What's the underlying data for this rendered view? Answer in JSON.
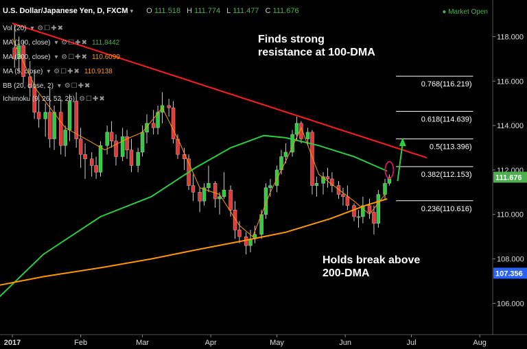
{
  "header": {
    "symbol": "U.S. Dollar/Japanese Yen, D, FXCM",
    "open_label": "O",
    "open": "111.518",
    "high_label": "H",
    "high": "111.774",
    "low_label": "L",
    "low": "111.477",
    "close_label": "C",
    "close": "111.676",
    "market_status": "Market Open"
  },
  "indicators": [
    {
      "label": "Vol (20)",
      "value": "",
      "color": "#dddddd"
    },
    {
      "label": "MA (100, close)",
      "value": "111.8442",
      "color": "#4caf50"
    },
    {
      "label": "MA (200, close)",
      "value": "110.6099",
      "color": "#ff9800"
    },
    {
      "label": "MA (5, close)",
      "value": "110.9138",
      "color": "#ff9800"
    },
    {
      "label": "BB (20, close, 2)",
      "value": "",
      "color": "#dddddd"
    },
    {
      "label": "Ichimoku (9, 26, 52, 26)",
      "value": "",
      "color": "#dddddd"
    }
  ],
  "annotations": {
    "resistance": [
      "Finds strong",
      "resistance at 100-DMA"
    ],
    "support": [
      "Holds break above",
      "200-DMA"
    ]
  },
  "chart_data": {
    "type": "line",
    "title": "U.S. Dollar/Japanese Yen, D, FXCM",
    "y_axis": {
      "range": [
        104.5,
        118.6
      ],
      "tick_labels": [
        "106.000",
        "108.000",
        "110.000",
        "112.000",
        "114.000",
        "116.000",
        "118.000"
      ],
      "position": "right"
    },
    "x_axis": {
      "range": [
        "2017-01-01",
        "2017-08-05"
      ],
      "tick_labels": [
        {
          "label": "2017",
          "date": "2017-01-01"
        },
        {
          "label": "Feb",
          "date": "2017-02-01"
        },
        {
          "label": "Mar",
          "date": "2017-03-01"
        },
        {
          "label": "Apr",
          "date": "2017-04-01"
        },
        {
          "label": "May",
          "date": "2017-05-01"
        },
        {
          "label": "Jun",
          "date": "2017-06-01"
        },
        {
          "label": "Jul",
          "date": "2017-07-01"
        },
        {
          "label": "Aug",
          "date": "2017-08-01"
        }
      ]
    },
    "price_badges": [
      {
        "value": 111.676,
        "label": "111.676",
        "color": "#4caf50"
      },
      {
        "value": 107.356,
        "label": "107.356",
        "color": "#2962ff"
      }
    ],
    "fibonacci": [
      {
        "level": 116.219,
        "label": "0.768(116.219)"
      },
      {
        "level": 114.639,
        "label": "0.618(114.639)"
      },
      {
        "level": 113.396,
        "label": "0.5(113.396)"
      },
      {
        "level": 112.153,
        "label": "0.382(112.153)"
      },
      {
        "level": 110.616,
        "label": "0.236(110.616)"
      }
    ],
    "trendline": {
      "color": "#ff1e1e",
      "points": [
        [
          "2017-01-01",
          118.6
        ],
        [
          "2017-07-08",
          112.55
        ]
      ]
    },
    "series": [
      {
        "key": "ma100",
        "color": "#2ecc40",
        "points": [
          [
            "2016-12-20",
            105.7
          ],
          [
            "2017-01-15",
            108.2
          ],
          [
            "2017-02-10",
            109.9
          ],
          [
            "2017-03-05",
            110.8
          ],
          [
            "2017-03-25",
            112.1
          ],
          [
            "2017-04-10",
            113.0
          ],
          [
            "2017-04-25",
            113.55
          ],
          [
            "2017-05-05",
            113.45
          ],
          [
            "2017-05-20",
            113.1
          ],
          [
            "2017-06-05",
            112.6
          ],
          [
            "2017-06-20",
            111.95
          ]
        ]
      },
      {
        "key": "ma200",
        "color": "#ff9800",
        "points": [
          [
            "2016-12-20",
            106.7
          ],
          [
            "2017-01-15",
            107.2
          ],
          [
            "2017-02-10",
            107.6
          ],
          [
            "2017-03-05",
            108.0
          ],
          [
            "2017-03-25",
            108.4
          ],
          [
            "2017-04-15",
            108.8
          ],
          [
            "2017-05-05",
            109.2
          ],
          [
            "2017-05-25",
            109.8
          ],
          [
            "2017-06-10",
            110.4
          ],
          [
            "2017-06-20",
            110.7
          ]
        ]
      },
      {
        "key": "ma5",
        "color": "#ff9800",
        "points": [
          [
            "2017-01-01",
            117.9
          ],
          [
            "2017-01-12",
            115.6
          ],
          [
            "2017-01-25",
            113.9
          ],
          [
            "2017-02-05",
            113.3
          ],
          [
            "2017-02-12",
            112.9
          ],
          [
            "2017-02-22",
            113.4
          ],
          [
            "2017-03-01",
            113.7
          ],
          [
            "2017-03-10",
            114.8
          ],
          [
            "2017-03-18",
            113.2
          ],
          [
            "2017-03-27",
            111.2
          ],
          [
            "2017-04-05",
            110.9
          ],
          [
            "2017-04-14",
            109.5
          ],
          [
            "2017-04-20",
            109.0
          ],
          [
            "2017-04-28",
            111.0
          ],
          [
            "2017-05-05",
            112.4
          ],
          [
            "2017-05-12",
            113.9
          ],
          [
            "2017-05-20",
            111.8
          ],
          [
            "2017-05-28",
            111.2
          ],
          [
            "2017-06-05",
            110.6
          ],
          [
            "2017-06-12",
            110.0
          ],
          [
            "2017-06-19",
            110.9
          ]
        ]
      }
    ],
    "candles": [
      [
        "2017-01-02",
        117.5,
        118.6,
        116.6,
        117.0
      ],
      [
        "2017-01-04",
        117.0,
        118.0,
        116.4,
        117.6
      ],
      [
        "2017-01-06",
        117.6,
        117.8,
        115.9,
        116.2
      ],
      [
        "2017-01-09",
        116.2,
        116.9,
        115.3,
        115.7
      ],
      [
        "2017-01-11",
        115.7,
        116.5,
        114.3,
        114.6
      ],
      [
        "2017-01-13",
        114.6,
        115.4,
        113.9,
        114.3
      ],
      [
        "2017-01-16",
        114.3,
        115.0,
        113.5,
        114.6
      ],
      [
        "2017-01-18",
        114.6,
        115.7,
        113.0,
        113.4
      ],
      [
        "2017-01-20",
        113.4,
        114.9,
        112.9,
        114.6
      ],
      [
        "2017-01-23",
        114.6,
        115.2,
        112.7,
        113.1
      ],
      [
        "2017-01-25",
        113.1,
        114.0,
        112.6,
        113.8
      ],
      [
        "2017-01-27",
        113.8,
        115.4,
        113.3,
        115.1
      ],
      [
        "2017-01-30",
        115.1,
        115.5,
        113.0,
        113.4
      ],
      [
        "2017-02-01",
        113.4,
        113.9,
        112.1,
        112.7
      ],
      [
        "2017-02-03",
        112.7,
        113.2,
        111.6,
        112.5
      ],
      [
        "2017-02-06",
        112.5,
        112.8,
        111.7,
        112.2
      ],
      [
        "2017-02-08",
        112.2,
        112.6,
        111.6,
        111.9
      ],
      [
        "2017-02-10",
        111.9,
        113.3,
        111.7,
        113.1
      ],
      [
        "2017-02-13",
        113.1,
        114.0,
        112.7,
        113.7
      ],
      [
        "2017-02-15",
        113.7,
        114.2,
        113.0,
        113.3
      ],
      [
        "2017-02-17",
        113.3,
        113.6,
        112.2,
        112.6
      ],
      [
        "2017-02-20",
        112.6,
        113.9,
        112.4,
        113.5
      ],
      [
        "2017-02-22",
        113.5,
        113.8,
        112.5,
        112.9
      ],
      [
        "2017-02-24",
        112.9,
        113.4,
        111.9,
        112.2
      ],
      [
        "2017-02-27",
        112.2,
        113.0,
        111.9,
        112.8
      ],
      [
        "2017-03-01",
        112.8,
        114.0,
        112.6,
        113.7
      ],
      [
        "2017-03-03",
        113.7,
        114.5,
        113.2,
        114.1
      ],
      [
        "2017-03-06",
        114.1,
        114.7,
        113.6,
        113.9
      ],
      [
        "2017-03-08",
        113.9,
        114.9,
        113.6,
        114.6
      ],
      [
        "2017-03-10",
        114.6,
        115.5,
        114.1,
        114.9
      ],
      [
        "2017-03-13",
        114.9,
        115.2,
        114.4,
        114.8
      ],
      [
        "2017-03-15",
        114.8,
        115.1,
        113.2,
        113.4
      ],
      [
        "2017-03-17",
        113.4,
        113.6,
        112.5,
        112.7
      ],
      [
        "2017-03-20",
        112.7,
        113.0,
        112.0,
        112.5
      ],
      [
        "2017-03-22",
        112.5,
        112.7,
        111.1,
        111.3
      ],
      [
        "2017-03-24",
        111.3,
        111.8,
        110.6,
        111.0
      ],
      [
        "2017-03-27",
        111.0,
        111.2,
        110.1,
        110.6
      ],
      [
        "2017-03-29",
        110.6,
        111.4,
        110.4,
        111.2
      ],
      [
        "2017-03-31",
        111.2,
        112.2,
        111.0,
        111.4
      ],
      [
        "2017-04-03",
        111.4,
        111.5,
        110.3,
        110.7
      ],
      [
        "2017-04-05",
        110.7,
        111.0,
        110.0,
        110.8
      ],
      [
        "2017-04-07",
        110.8,
        111.9,
        110.7,
        111.1
      ],
      [
        "2017-04-10",
        111.1,
        111.3,
        109.9,
        110.2
      ],
      [
        "2017-04-12",
        110.2,
        110.6,
        108.9,
        109.3
      ],
      [
        "2017-04-14",
        109.3,
        109.7,
        108.7,
        109.0
      ],
      [
        "2017-04-17",
        109.0,
        109.2,
        108.2,
        108.6
      ],
      [
        "2017-04-19",
        108.6,
        109.3,
        108.3,
        108.9
      ],
      [
        "2017-04-21",
        108.9,
        109.5,
        108.7,
        109.1
      ],
      [
        "2017-04-24",
        109.1,
        110.2,
        108.9,
        110.0
      ],
      [
        "2017-04-26",
        110.0,
        111.4,
        109.8,
        111.2
      ],
      [
        "2017-04-28",
        111.2,
        111.6,
        110.8,
        111.3
      ],
      [
        "2017-05-01",
        111.3,
        112.2,
        111.0,
        112.0
      ],
      [
        "2017-05-03",
        112.0,
        112.9,
        111.8,
        112.6
      ],
      [
        "2017-05-05",
        112.6,
        113.2,
        112.3,
        112.8
      ],
      [
        "2017-05-08",
        112.8,
        113.8,
        112.6,
        113.6
      ],
      [
        "2017-05-10",
        113.6,
        114.4,
        113.3,
        114.1
      ],
      [
        "2017-05-12",
        114.1,
        114.2,
        113.2,
        113.4
      ],
      [
        "2017-05-15",
        113.4,
        113.9,
        113.1,
        113.7
      ],
      [
        "2017-05-17",
        113.7,
        113.8,
        110.9,
        111.3
      ],
      [
        "2017-05-19",
        111.3,
        111.7,
        110.8,
        111.4
      ],
      [
        "2017-05-22",
        111.4,
        111.9,
        110.9,
        111.7
      ],
      [
        "2017-05-24",
        111.7,
        112.1,
        111.2,
        111.6
      ],
      [
        "2017-05-26",
        111.6,
        111.9,
        111.0,
        111.3
      ],
      [
        "2017-05-29",
        111.3,
        111.5,
        110.7,
        110.9
      ],
      [
        "2017-05-31",
        110.9,
        111.2,
        110.4,
        110.8
      ],
      [
        "2017-06-02",
        110.8,
        111.3,
        110.2,
        110.4
      ],
      [
        "2017-06-05",
        110.4,
        110.5,
        109.7,
        109.9
      ],
      [
        "2017-06-07",
        109.9,
        110.2,
        109.4,
        109.9
      ],
      [
        "2017-06-09",
        109.9,
        110.8,
        109.6,
        110.4
      ],
      [
        "2017-06-12",
        110.4,
        110.7,
        109.8,
        110.1
      ],
      [
        "2017-06-14",
        110.1,
        110.4,
        109.1,
        109.6
      ],
      [
        "2017-06-16",
        109.6,
        111.1,
        109.4,
        110.9
      ],
      [
        "2017-06-19",
        110.9,
        111.6,
        110.7,
        111.4
      ],
      [
        "2017-06-21",
        111.4,
        111.8,
        111.3,
        111.68
      ]
    ]
  }
}
